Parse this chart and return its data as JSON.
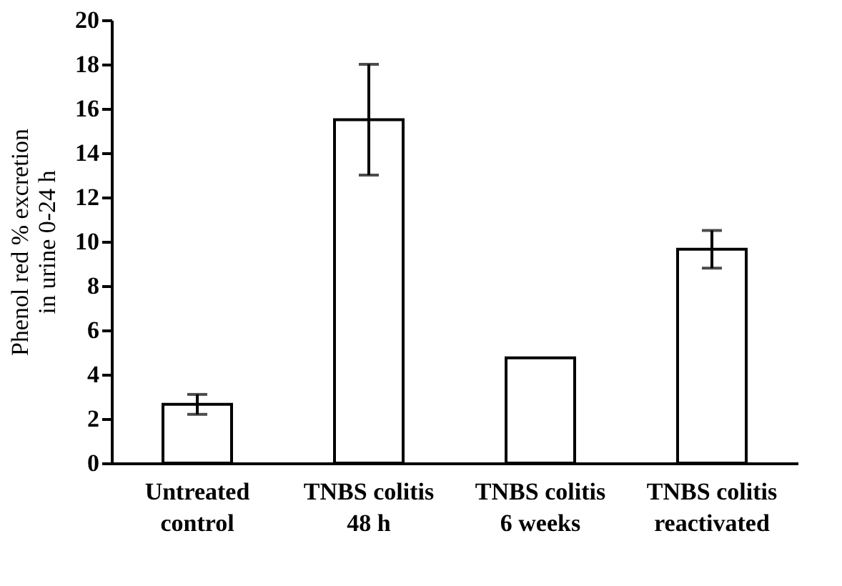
{
  "chart_data": {
    "type": "bar",
    "ylabel": "Phenol red % excretion\nin urine 0-24 h",
    "categories": [
      "Untreated\ncontrol",
      "TNBS colitis\n48 h",
      "TNBS colitis\n6 weeks",
      "TNBS colitis\nreactivated"
    ],
    "values": [
      2.65,
      15.5,
      4.75,
      9.65
    ],
    "errors": [
      [
        2.2,
        3.1
      ],
      [
        13.0,
        18.0
      ],
      null,
      [
        8.8,
        10.5
      ]
    ],
    "color": "#ffffff",
    "ylim": [
      0,
      20
    ],
    "yticks": [
      0,
      2,
      4,
      6,
      8,
      10,
      12,
      14,
      16,
      18,
      20
    ],
    "grid": false
  }
}
